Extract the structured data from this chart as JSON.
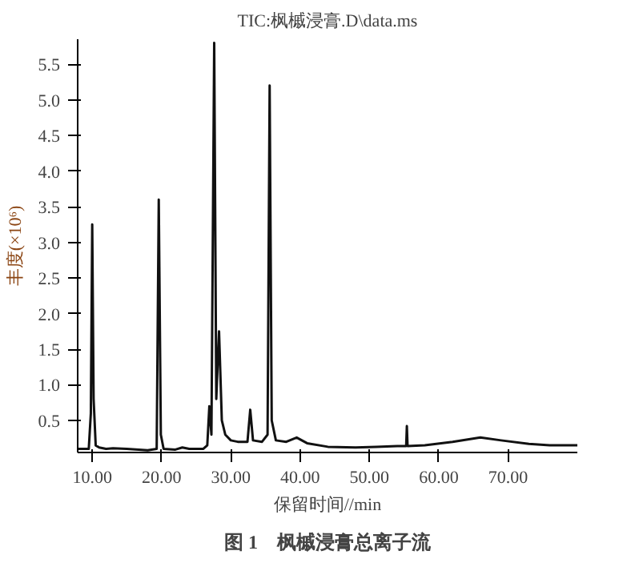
{
  "chart_data": {
    "type": "line",
    "title": "TIC:枫槭浸膏.D\\data.ms",
    "xlabel": "保留时间//min",
    "ylabel": "丰度(×10⁶)",
    "annotations": [
      "图 1　枫槭浸膏总离子流"
    ],
    "color": "#111111",
    "marker": "none",
    "line_style": "solid",
    "grid": false,
    "x": [
      8.0,
      9.5,
      9.8,
      10.0,
      10.2,
      10.5,
      11,
      12,
      13,
      15,
      18,
      19.3,
      19.6,
      19.9,
      20.3,
      22,
      23,
      24,
      26,
      26.6,
      26.9,
      27.2,
      27.6,
      27.9,
      28.3,
      28.7,
      29.2,
      30,
      31,
      32.4,
      32.8,
      33.2,
      34.5,
      35.3,
      35.6,
      35.9,
      36.5,
      38,
      39.5,
      41,
      44,
      48,
      51,
      54,
      55.3,
      55.4,
      55.5,
      58,
      62,
      66,
      69,
      73,
      76,
      80
    ],
    "values": [
      0.1,
      0.1,
      0.6,
      3.25,
      0.8,
      0.15,
      0.12,
      0.1,
      0.11,
      0.1,
      0.08,
      0.1,
      3.6,
      0.3,
      0.1,
      0.09,
      0.12,
      0.1,
      0.1,
      0.15,
      0.7,
      0.3,
      5.8,
      0.8,
      1.75,
      0.5,
      0.3,
      0.22,
      0.2,
      0.2,
      0.65,
      0.22,
      0.2,
      0.3,
      5.2,
      0.5,
      0.22,
      0.2,
      0.26,
      0.18,
      0.13,
      0.12,
      0.13,
      0.14,
      0.14,
      0.42,
      0.14,
      0.15,
      0.2,
      0.26,
      0.22,
      0.17,
      0.15,
      0.15
    ],
    "xlim": [
      7.9,
      80
    ],
    "ylim": [
      0.05,
      5.85
    ],
    "xticks": [
      {
        "value": 10,
        "label": "10.00"
      },
      {
        "value": 20,
        "label": "20.00"
      },
      {
        "value": 30,
        "label": "30.00"
      },
      {
        "value": 40,
        "label": "40.00"
      },
      {
        "value": 50,
        "label": "50.00"
      },
      {
        "value": 60,
        "label": "60.00"
      },
      {
        "value": 70,
        "label": "70.00"
      }
    ],
    "yticks": [
      0.5,
      {
        "value": 1,
        "label": "1.0"
      },
      1.5,
      {
        "value": 2,
        "label": "2.0"
      },
      2.5,
      {
        "value": 3,
        "label": "3.0"
      },
      3.5,
      {
        "value": 4,
        "label": "4.0"
      },
      4.5,
      {
        "value": 5,
        "label": "5.0"
      },
      5.5
    ]
  }
}
